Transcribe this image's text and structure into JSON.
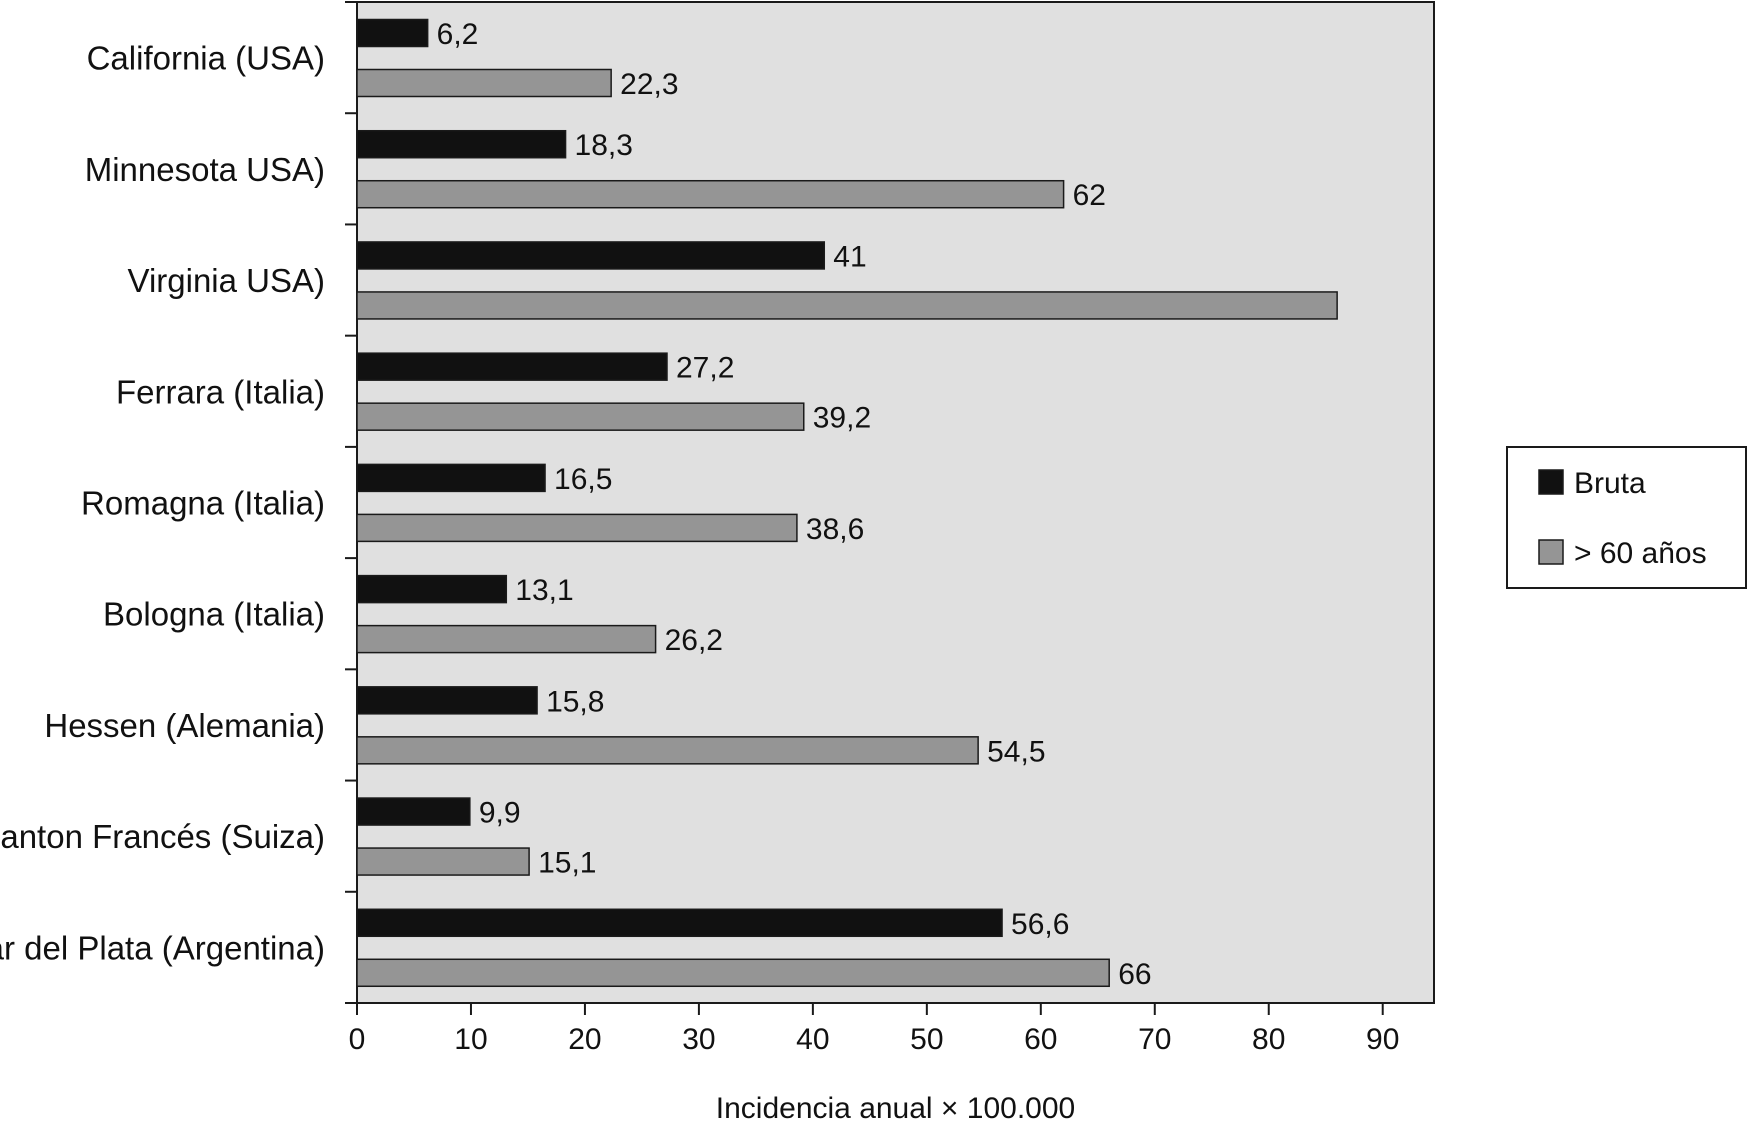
{
  "chart_data": {
    "type": "bar",
    "orientation": "horizontal",
    "categories": [
      "California (USA)",
      "Minnesota USA)",
      "Virginia USA)",
      "Ferrara (Italia)",
      "Romagna (Italia)",
      "Bologna (Italia)",
      "Hessen (Alemania)",
      "Canton Francés (Suiza)",
      "Mar del Plata (Argentina)"
    ],
    "series": [
      {
        "name": "Bruta",
        "color": "#111111",
        "values": [
          6.2,
          18.3,
          41,
          27.2,
          16.5,
          13.1,
          15.8,
          9.9,
          56.6
        ],
        "labels": [
          "6,2",
          "18,3",
          "41",
          "27,2",
          "16,5",
          "13,1",
          "15,8",
          "9,9",
          "56,6"
        ]
      },
      {
        "name": "> 60 años",
        "color": "#959595",
        "values": [
          22.3,
          62,
          86,
          39.2,
          38.6,
          26.2,
          54.5,
          15.1,
          66
        ],
        "labels": [
          "22,3",
          "62",
          "",
          "39,2",
          "38,6",
          "26,2",
          "54,5",
          "15,1",
          "66"
        ]
      }
    ],
    "xlabel": "Incidencia anual × 100.000",
    "ylabel": "",
    "xlim": [
      0,
      94.5
    ],
    "xticks": [
      0,
      10,
      20,
      30,
      40,
      50,
      60,
      70,
      80,
      90
    ],
    "plot_background": "#e0e0e0",
    "grid": false,
    "legend_position": "right"
  }
}
